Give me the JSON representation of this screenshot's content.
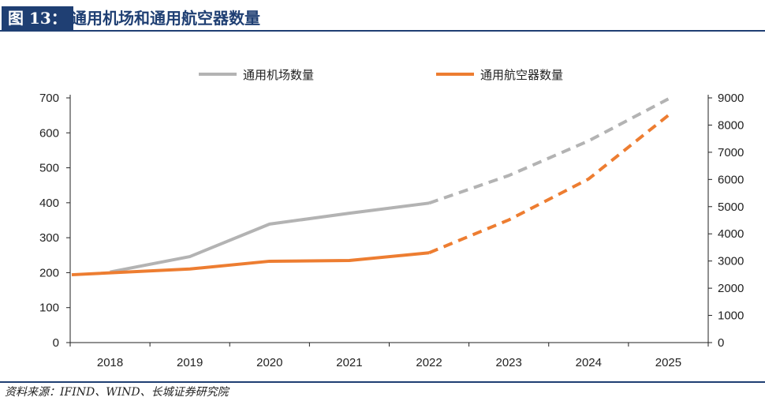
{
  "header": {
    "label": "图 13：",
    "title": "通用机场和通用航空器数量"
  },
  "source": "资料来源：IFIND、WIND、长城证券研究院",
  "colors": {
    "title_bg": "#1f3f73",
    "airport_series": "#b3b3b3",
    "aircraft_series": "#ed7d31",
    "axis": "#222222"
  },
  "chart_data": {
    "type": "line",
    "categories": [
      "2018",
      "2019",
      "2020",
      "2021",
      "2022",
      "2023",
      "2024",
      "2025"
    ],
    "y_left": {
      "min": 0,
      "max": 700,
      "ticks": [
        0,
        100,
        200,
        300,
        400,
        500,
        600,
        700
      ]
    },
    "y_right": {
      "min": 0,
      "max": 9000,
      "ticks": [
        0,
        1000,
        2000,
        3000,
        4000,
        5000,
        6000,
        7000,
        8000,
        9000
      ]
    },
    "legend_position": "top-center",
    "series": [
      {
        "name": "通用机场数量",
        "axis": "left",
        "color": "#b3b3b3",
        "values": [
          202,
          246,
          339,
          370,
          399,
          478,
          577,
          697
        ],
        "projected_from_index": 4
      },
      {
        "name": "通用航空器数量",
        "axis": "right",
        "color": "#ed7d31",
        "values": [
          2495,
          2707,
          2992,
          3018,
          3303,
          4513,
          6017,
          8360
        ],
        "projected_from_index": 4
      }
    ]
  }
}
